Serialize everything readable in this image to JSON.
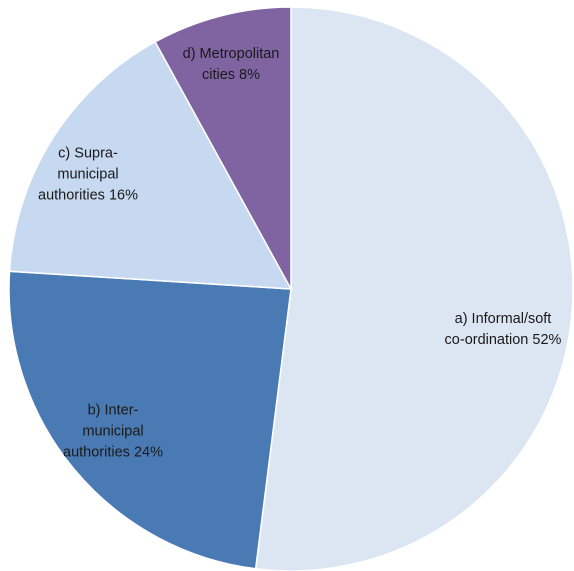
{
  "chart_data": {
    "type": "pie",
    "categories": [
      "a) Informal/soft co-ordination",
      "b) Inter-municipal authorities",
      "c) Supra-municipal authorities",
      "d) Metropolitan cities"
    ],
    "values": [
      52,
      24,
      16,
      8
    ],
    "value_labels": [
      "52%",
      "24%",
      "16%",
      "8%"
    ],
    "colors": [
      "#dce6f2",
      "#4a7ab4",
      "#c6d9f1",
      "#8064a2"
    ],
    "start_angle": 0,
    "direction": "clockwise"
  }
}
